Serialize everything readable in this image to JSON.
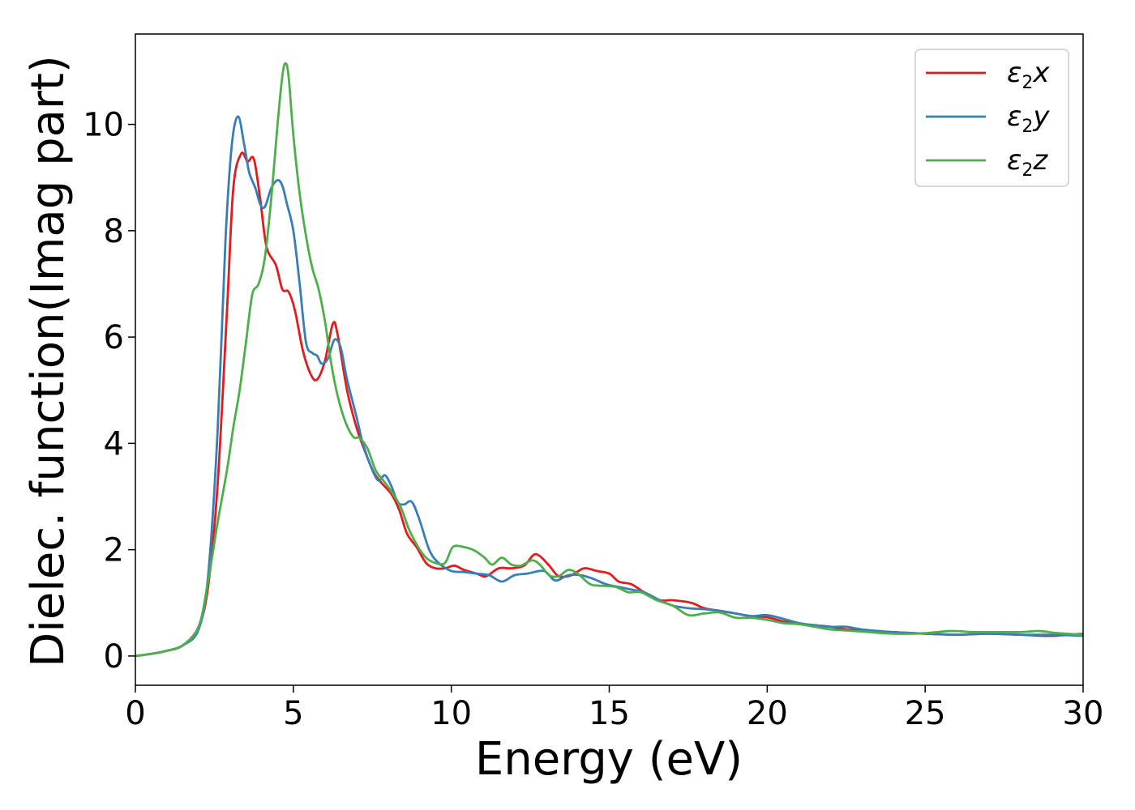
{
  "chart_data": {
    "type": "line",
    "title": "",
    "xlabel": "Energy (eV)",
    "ylabel": "Dielec. function(Imag part)",
    "xlim": [
      0,
      30
    ],
    "ylim": [
      -0.55,
      11.7
    ],
    "xticks": [
      0,
      5,
      10,
      15,
      20,
      25,
      30
    ],
    "yticks": [
      0,
      2,
      4,
      6,
      8,
      10
    ],
    "grid": false,
    "legend_position": "top-right",
    "series": [
      {
        "name_base": "ε",
        "name_sub": "2",
        "name_suffix": "x",
        "color": "#e41a1c",
        "points": [
          [
            0,
            0
          ],
          [
            0.5,
            0.04
          ],
          [
            1,
            0.1
          ],
          [
            1.5,
            0.2
          ],
          [
            2,
            0.55
          ],
          [
            2.3,
            1.3
          ],
          [
            2.6,
            3.2
          ],
          [
            2.9,
            6.5
          ],
          [
            3.1,
            8.8
          ],
          [
            3.35,
            9.45
          ],
          [
            3.55,
            9.3
          ],
          [
            3.75,
            9.35
          ],
          [
            3.95,
            8.6
          ],
          [
            4.15,
            7.7
          ],
          [
            4.45,
            7.35
          ],
          [
            4.65,
            6.9
          ],
          [
            4.85,
            6.85
          ],
          [
            5.05,
            6.5
          ],
          [
            5.3,
            5.75
          ],
          [
            5.55,
            5.3
          ],
          [
            5.75,
            5.2
          ],
          [
            6.0,
            5.55
          ],
          [
            6.25,
            6.25
          ],
          [
            6.4,
            6.05
          ],
          [
            6.7,
            5.0
          ],
          [
            7.0,
            4.3
          ],
          [
            7.3,
            3.8
          ],
          [
            7.55,
            3.45
          ],
          [
            7.8,
            3.25
          ],
          [
            8.1,
            3.05
          ],
          [
            8.35,
            2.75
          ],
          [
            8.6,
            2.3
          ],
          [
            8.9,
            2.05
          ],
          [
            9.2,
            1.75
          ],
          [
            9.5,
            1.65
          ],
          [
            9.8,
            1.65
          ],
          [
            10.1,
            1.7
          ],
          [
            10.4,
            1.62
          ],
          [
            10.8,
            1.55
          ],
          [
            11.1,
            1.5
          ],
          [
            11.5,
            1.65
          ],
          [
            11.9,
            1.65
          ],
          [
            12.3,
            1.7
          ],
          [
            12.6,
            1.9
          ],
          [
            12.8,
            1.88
          ],
          [
            13.1,
            1.7
          ],
          [
            13.4,
            1.5
          ],
          [
            13.8,
            1.52
          ],
          [
            14.2,
            1.65
          ],
          [
            14.6,
            1.6
          ],
          [
            15.0,
            1.55
          ],
          [
            15.3,
            1.4
          ],
          [
            15.7,
            1.35
          ],
          [
            16.1,
            1.2
          ],
          [
            16.6,
            1.05
          ],
          [
            17.0,
            1.05
          ],
          [
            17.6,
            1.0
          ],
          [
            18.0,
            0.9
          ],
          [
            18.5,
            0.85
          ],
          [
            19.0,
            0.8
          ],
          [
            19.5,
            0.75
          ],
          [
            20.0,
            0.73
          ],
          [
            20.5,
            0.65
          ],
          [
            21.0,
            0.6
          ],
          [
            21.5,
            0.58
          ],
          [
            22.0,
            0.55
          ],
          [
            22.5,
            0.5
          ],
          [
            23.0,
            0.48
          ],
          [
            23.5,
            0.45
          ],
          [
            24.0,
            0.45
          ],
          [
            25.0,
            0.42
          ],
          [
            26.0,
            0.4
          ],
          [
            27.0,
            0.42
          ],
          [
            28.0,
            0.4
          ],
          [
            29.0,
            0.38
          ],
          [
            30.0,
            0.42
          ]
        ]
      },
      {
        "name_base": "ε",
        "name_sub": "2",
        "name_suffix": "y",
        "color": "#377eb8",
        "points": [
          [
            0,
            0
          ],
          [
            0.5,
            0.04
          ],
          [
            1,
            0.1
          ],
          [
            1.5,
            0.2
          ],
          [
            2,
            0.5
          ],
          [
            2.3,
            1.5
          ],
          [
            2.6,
            4.2
          ],
          [
            2.85,
            7.8
          ],
          [
            3.05,
            9.6
          ],
          [
            3.25,
            10.15
          ],
          [
            3.45,
            9.6
          ],
          [
            3.6,
            9.1
          ],
          [
            3.8,
            8.8
          ],
          [
            3.95,
            8.5
          ],
          [
            4.1,
            8.45
          ],
          [
            4.3,
            8.8
          ],
          [
            4.5,
            8.95
          ],
          [
            4.65,
            8.85
          ],
          [
            4.8,
            8.5
          ],
          [
            5.0,
            8.0
          ],
          [
            5.2,
            7.0
          ],
          [
            5.4,
            5.9
          ],
          [
            5.6,
            5.7
          ],
          [
            5.75,
            5.65
          ],
          [
            5.9,
            5.5
          ],
          [
            6.1,
            5.6
          ],
          [
            6.3,
            5.95
          ],
          [
            6.5,
            5.8
          ],
          [
            6.7,
            5.2
          ],
          [
            7.0,
            4.5
          ],
          [
            7.2,
            4.0
          ],
          [
            7.5,
            3.5
          ],
          [
            7.7,
            3.3
          ],
          [
            7.9,
            3.4
          ],
          [
            8.1,
            3.2
          ],
          [
            8.3,
            2.9
          ],
          [
            8.5,
            2.85
          ],
          [
            8.75,
            2.9
          ],
          [
            9.0,
            2.55
          ],
          [
            9.3,
            2.0
          ],
          [
            9.6,
            1.75
          ],
          [
            10.0,
            1.6
          ],
          [
            10.4,
            1.58
          ],
          [
            10.8,
            1.55
          ],
          [
            11.2,
            1.52
          ],
          [
            11.6,
            1.4
          ],
          [
            12.0,
            1.52
          ],
          [
            12.4,
            1.55
          ],
          [
            12.8,
            1.6
          ],
          [
            13.0,
            1.58
          ],
          [
            13.3,
            1.42
          ],
          [
            13.7,
            1.52
          ],
          [
            14.1,
            1.52
          ],
          [
            14.5,
            1.45
          ],
          [
            14.9,
            1.35
          ],
          [
            15.3,
            1.3
          ],
          [
            15.7,
            1.25
          ],
          [
            16.1,
            1.2
          ],
          [
            16.6,
            1.05
          ],
          [
            17.0,
            0.95
          ],
          [
            17.5,
            0.9
          ],
          [
            18.0,
            0.88
          ],
          [
            18.5,
            0.85
          ],
          [
            19.0,
            0.8
          ],
          [
            19.5,
            0.75
          ],
          [
            20.0,
            0.77
          ],
          [
            20.5,
            0.7
          ],
          [
            21.0,
            0.62
          ],
          [
            21.5,
            0.58
          ],
          [
            22.0,
            0.55
          ],
          [
            22.5,
            0.55
          ],
          [
            23.0,
            0.5
          ],
          [
            24.0,
            0.45
          ],
          [
            25.0,
            0.42
          ],
          [
            26.0,
            0.4
          ],
          [
            27.0,
            0.42
          ],
          [
            28.0,
            0.4
          ],
          [
            29.0,
            0.4
          ],
          [
            30.0,
            0.38
          ]
        ]
      },
      {
        "name_base": "ε",
        "name_sub": "2",
        "name_suffix": "z",
        "color": "#4daf4a",
        "points": [
          [
            0,
            0
          ],
          [
            0.5,
            0.04
          ],
          [
            1,
            0.1
          ],
          [
            1.5,
            0.2
          ],
          [
            2,
            0.55
          ],
          [
            2.3,
            1.4
          ],
          [
            2.6,
            2.5
          ],
          [
            2.9,
            3.5
          ],
          [
            3.1,
            4.3
          ],
          [
            3.3,
            5.0
          ],
          [
            3.5,
            5.9
          ],
          [
            3.7,
            6.8
          ],
          [
            3.9,
            7.0
          ],
          [
            4.1,
            7.5
          ],
          [
            4.3,
            8.6
          ],
          [
            4.5,
            10.0
          ],
          [
            4.65,
            10.9
          ],
          [
            4.75,
            11.15
          ],
          [
            4.85,
            10.9
          ],
          [
            5.0,
            9.8
          ],
          [
            5.2,
            8.7
          ],
          [
            5.4,
            7.9
          ],
          [
            5.6,
            7.3
          ],
          [
            5.8,
            6.9
          ],
          [
            6.0,
            6.3
          ],
          [
            6.2,
            5.5
          ],
          [
            6.4,
            4.9
          ],
          [
            6.65,
            4.4
          ],
          [
            6.9,
            4.12
          ],
          [
            7.1,
            4.1
          ],
          [
            7.35,
            3.9
          ],
          [
            7.6,
            3.5
          ],
          [
            7.85,
            3.3
          ],
          [
            8.1,
            3.1
          ],
          [
            8.4,
            2.8
          ],
          [
            8.65,
            2.4
          ],
          [
            8.95,
            2.05
          ],
          [
            9.2,
            1.85
          ],
          [
            9.5,
            1.75
          ],
          [
            9.8,
            1.75
          ],
          [
            10.05,
            2.05
          ],
          [
            10.4,
            2.05
          ],
          [
            10.75,
            1.98
          ],
          [
            11.05,
            1.85
          ],
          [
            11.3,
            1.72
          ],
          [
            11.6,
            1.85
          ],
          [
            11.9,
            1.72
          ],
          [
            12.2,
            1.7
          ],
          [
            12.55,
            1.8
          ],
          [
            12.8,
            1.72
          ],
          [
            13.1,
            1.52
          ],
          [
            13.4,
            1.5
          ],
          [
            13.7,
            1.62
          ],
          [
            14.0,
            1.55
          ],
          [
            14.4,
            1.35
          ],
          [
            14.8,
            1.32
          ],
          [
            15.2,
            1.3
          ],
          [
            15.6,
            1.2
          ],
          [
            16.0,
            1.2
          ],
          [
            16.5,
            1.05
          ],
          [
            17.0,
            0.95
          ],
          [
            17.5,
            0.77
          ],
          [
            18.0,
            0.8
          ],
          [
            18.5,
            0.82
          ],
          [
            19.0,
            0.72
          ],
          [
            19.5,
            0.72
          ],
          [
            20.0,
            0.68
          ],
          [
            20.5,
            0.62
          ],
          [
            21.0,
            0.6
          ],
          [
            21.5,
            0.55
          ],
          [
            22.0,
            0.5
          ],
          [
            22.5,
            0.48
          ],
          [
            23.0,
            0.46
          ],
          [
            24.0,
            0.42
          ],
          [
            25.0,
            0.43
          ],
          [
            25.8,
            0.47
          ],
          [
            26.5,
            0.45
          ],
          [
            27.0,
            0.45
          ],
          [
            28.0,
            0.45
          ],
          [
            28.6,
            0.47
          ],
          [
            29.2,
            0.43
          ],
          [
            30.0,
            0.4
          ]
        ]
      }
    ]
  }
}
